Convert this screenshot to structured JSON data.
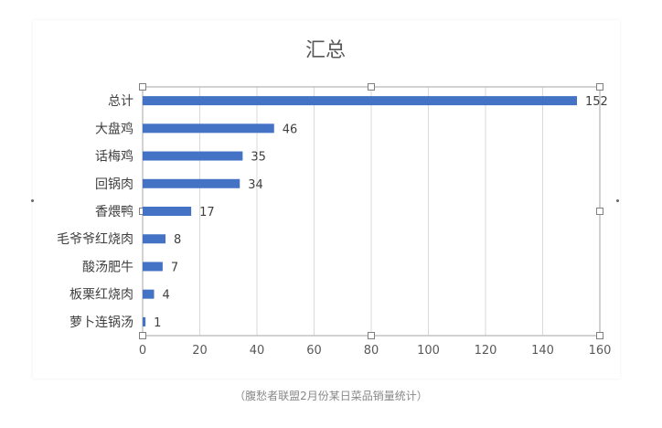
{
  "chart_data": {
    "type": "bar",
    "orientation": "horizontal",
    "title": "汇总",
    "categories": [
      "总计",
      "大盘鸡",
      "话梅鸡",
      "回锅肉",
      "香煨鸭",
      "毛爷爷红烧肉",
      "酸汤肥牛",
      "板栗红烧肉",
      "萝卜连锅汤"
    ],
    "values": [
      152,
      46,
      35,
      34,
      17,
      8,
      7,
      4,
      1
    ],
    "xlim": [
      0,
      160
    ],
    "xticks": [
      0,
      20,
      40,
      60,
      80,
      100,
      120,
      140,
      160
    ],
    "xlabel": "",
    "ylabel": "",
    "grid": "vertical",
    "data_labels": true,
    "bar_color": "#4472C4"
  },
  "caption": "（腹愁者联盟2月份某日菜品销量统计）"
}
